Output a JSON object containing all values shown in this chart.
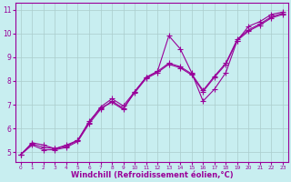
{
  "bg_color": "#c8eef0",
  "grid_color": "#aacccc",
  "line_color": "#990099",
  "marker": "+",
  "markersize": 4,
  "linewidth": 0.8,
  "xlim": [
    -0.5,
    23.5
  ],
  "ylim": [
    4.6,
    11.3
  ],
  "xticks": [
    0,
    1,
    2,
    3,
    4,
    5,
    6,
    7,
    8,
    9,
    10,
    11,
    12,
    13,
    14,
    15,
    16,
    17,
    18,
    19,
    20,
    21,
    22,
    23
  ],
  "yticks": [
    5,
    6,
    7,
    8,
    9,
    10,
    11
  ],
  "xlabel": "Windchill (Refroidissement éolien,°C)",
  "series1": {
    "x": [
      0,
      1,
      2,
      3,
      4,
      5,
      6,
      7,
      8,
      9,
      10,
      11,
      12,
      13,
      14,
      15,
      16,
      17,
      18,
      19,
      20,
      21,
      22,
      23
    ],
    "y": [
      4.9,
      5.4,
      5.3,
      5.15,
      5.3,
      5.5,
      6.3,
      6.85,
      7.1,
      6.8,
      7.55,
      8.15,
      8.4,
      9.9,
      9.35,
      8.35,
      7.15,
      7.65,
      8.35,
      9.7,
      10.3,
      10.5,
      10.8,
      10.9
    ]
  },
  "series2": {
    "x": [
      0,
      1,
      2,
      3,
      4,
      5,
      6,
      7,
      8,
      9,
      10,
      11,
      12,
      13,
      14,
      15,
      16,
      17,
      18,
      19,
      20,
      21,
      22,
      23
    ],
    "y": [
      4.9,
      5.35,
      5.2,
      5.15,
      5.25,
      5.5,
      6.25,
      6.9,
      7.25,
      6.95,
      7.55,
      8.15,
      8.4,
      8.75,
      8.6,
      8.3,
      7.6,
      8.2,
      8.75,
      9.75,
      10.15,
      10.4,
      10.7,
      10.85
    ]
  },
  "series3": {
    "x": [
      0,
      1,
      2,
      3,
      4,
      5,
      6,
      7,
      8,
      9,
      10,
      11,
      12,
      13,
      14,
      15,
      16,
      17,
      18,
      19,
      20,
      21,
      22,
      23
    ],
    "y": [
      4.9,
      5.3,
      5.1,
      5.1,
      5.2,
      5.45,
      6.2,
      6.8,
      7.15,
      6.85,
      7.5,
      8.1,
      8.35,
      8.7,
      8.55,
      8.25,
      7.55,
      8.15,
      8.7,
      9.7,
      10.1,
      10.35,
      10.65,
      10.8
    ]
  },
  "tick_fontsize_x": 5,
  "tick_fontsize_y": 6,
  "xlabel_fontsize": 6,
  "tick_color": "#990099",
  "spine_color": "#990099"
}
